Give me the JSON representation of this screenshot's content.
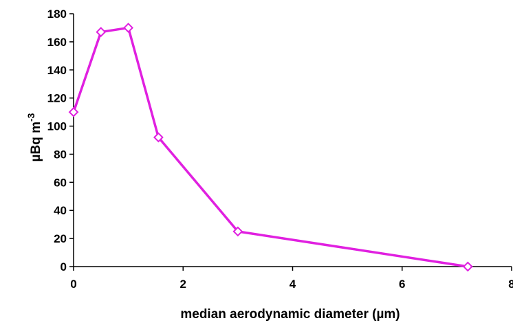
{
  "chart_data": {
    "type": "line",
    "title": "",
    "xlabel": "median aerodynamic diameter (µm)",
    "ylabel": "µBq m",
    "ylabel_superscript": "-3",
    "xlim": [
      0,
      8
    ],
    "ylim": [
      0,
      180
    ],
    "x_ticks": [
      0,
      2,
      4,
      6,
      8
    ],
    "y_ticks": [
      0,
      20,
      40,
      60,
      80,
      100,
      120,
      140,
      160,
      180
    ],
    "grid": false,
    "legend": "none",
    "series": [
      {
        "marker": "open-diamond",
        "color": "#e020e0",
        "points": [
          {
            "x": 0.0,
            "y": 110
          },
          {
            "x": 0.5,
            "y": 167
          },
          {
            "x": 1.0,
            "y": 170
          },
          {
            "x": 1.55,
            "y": 92
          },
          {
            "x": 3.0,
            "y": 25
          },
          {
            "x": 7.2,
            "y": 0
          }
        ]
      }
    ]
  }
}
